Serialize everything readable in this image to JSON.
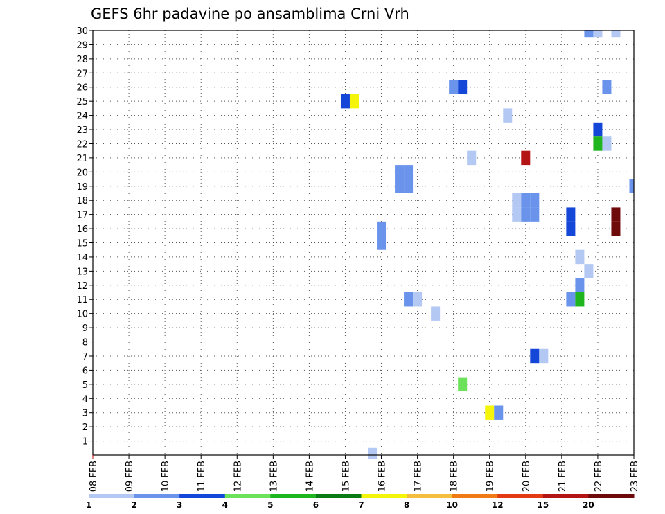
{
  "chart_data": {
    "type": "heatmap",
    "title": "GEFS 6hr padavine po ansamblima Crni Vrh",
    "xlabel": "",
    "ylabel": "",
    "x_tick_labels": [
      "08 FEB",
      "09 FEB",
      "10 FEB",
      "11 FEB",
      "12 FEB",
      "13 FEB",
      "14 FEB",
      "15 FEB",
      "16 FEB",
      "17 FEB",
      "18 FEB",
      "19 FEB",
      "20 FEB",
      "21 FEB",
      "22 FEB",
      "23 FEB"
    ],
    "y_tick_labels": [
      "1",
      "2",
      "3",
      "4",
      "5",
      "6",
      "7",
      "8",
      "9",
      "10",
      "11",
      "12",
      "13",
      "14",
      "15",
      "16",
      "17",
      "18",
      "19",
      "20",
      "21",
      "22",
      "23",
      "24",
      "25",
      "26",
      "27",
      "28",
      "29",
      "30"
    ],
    "xlim_days": [
      0,
      15
    ],
    "ylim": [
      0,
      30
    ],
    "grid": true,
    "colorbar": {
      "boundaries": [
        "1",
        "2",
        "3",
        "4",
        "5",
        "6",
        "7",
        "8",
        "10",
        "12",
        "15",
        "20"
      ],
      "colors": [
        "#b3c8f2",
        "#6a93ec",
        "#1446d8",
        "#6be25a",
        "#1fb51f",
        "#0a7a14",
        "#f5f50a",
        "#f5be41",
        "#f07a14",
        "#e33a14",
        "#b41414",
        "#6e0a0a"
      ]
    },
    "cells": [
      {
        "day": 13.75,
        "member": 30,
        "level": 1
      },
      {
        "day": 14.0,
        "member": 30,
        "level": 0
      },
      {
        "day": 14.5,
        "member": 30,
        "level": 0
      },
      {
        "day": 10.0,
        "member": 26,
        "level": 1
      },
      {
        "day": 10.25,
        "member": 26,
        "level": 2
      },
      {
        "day": 14.25,
        "member": 26,
        "level": 1
      },
      {
        "day": 7.0,
        "member": 25,
        "level": 2
      },
      {
        "day": 7.25,
        "member": 25,
        "level": 6
      },
      {
        "day": 11.5,
        "member": 24,
        "level": 0
      },
      {
        "day": 14.0,
        "member": 23,
        "level": 2
      },
      {
        "day": 14.0,
        "member": 22,
        "level": 4
      },
      {
        "day": 14.25,
        "member": 22,
        "level": 0
      },
      {
        "day": 10.5,
        "member": 21,
        "level": 0
      },
      {
        "day": 12.0,
        "member": 21,
        "level": 10
      },
      {
        "day": 8.5,
        "member": 20,
        "level": 1
      },
      {
        "day": 8.75,
        "member": 20,
        "level": 1
      },
      {
        "day": 8.5,
        "member": 19,
        "level": 1
      },
      {
        "day": 8.75,
        "member": 19,
        "level": 1
      },
      {
        "day": 15.0,
        "member": 19,
        "level": 1
      },
      {
        "day": 11.75,
        "member": 18,
        "level": 0
      },
      {
        "day": 12.0,
        "member": 18,
        "level": 1
      },
      {
        "day": 12.25,
        "member": 18,
        "level": 1
      },
      {
        "day": 11.75,
        "member": 17,
        "level": 0
      },
      {
        "day": 12.0,
        "member": 17,
        "level": 1
      },
      {
        "day": 12.25,
        "member": 17,
        "level": 1
      },
      {
        "day": 13.25,
        "member": 17,
        "level": 2
      },
      {
        "day": 14.5,
        "member": 17,
        "level": 11
      },
      {
        "day": 13.25,
        "member": 16,
        "level": 2
      },
      {
        "day": 14.5,
        "member": 16,
        "level": 11
      },
      {
        "day": 8.0,
        "member": 16,
        "level": 1
      },
      {
        "day": 8.0,
        "member": 15,
        "level": 1
      },
      {
        "day": 13.5,
        "member": 14,
        "level": 0
      },
      {
        "day": 13.75,
        "member": 13,
        "level": 0
      },
      {
        "day": 13.5,
        "member": 12,
        "level": 1
      },
      {
        "day": 8.75,
        "member": 11,
        "level": 1
      },
      {
        "day": 9.0,
        "member": 11,
        "level": 0
      },
      {
        "day": 13.25,
        "member": 11,
        "level": 1
      },
      {
        "day": 13.5,
        "member": 11,
        "level": 4
      },
      {
        "day": 9.5,
        "member": 10,
        "level": 0
      },
      {
        "day": 12.25,
        "member": 7,
        "level": 2
      },
      {
        "day": 12.5,
        "member": 7,
        "level": 0
      },
      {
        "day": 10.25,
        "member": 5,
        "level": 3
      },
      {
        "day": 11.0,
        "member": 3,
        "level": 6
      },
      {
        "day": 11.25,
        "member": 3,
        "level": 1
      },
      {
        "day": 7.75,
        "member": 0,
        "level": 0
      }
    ]
  }
}
